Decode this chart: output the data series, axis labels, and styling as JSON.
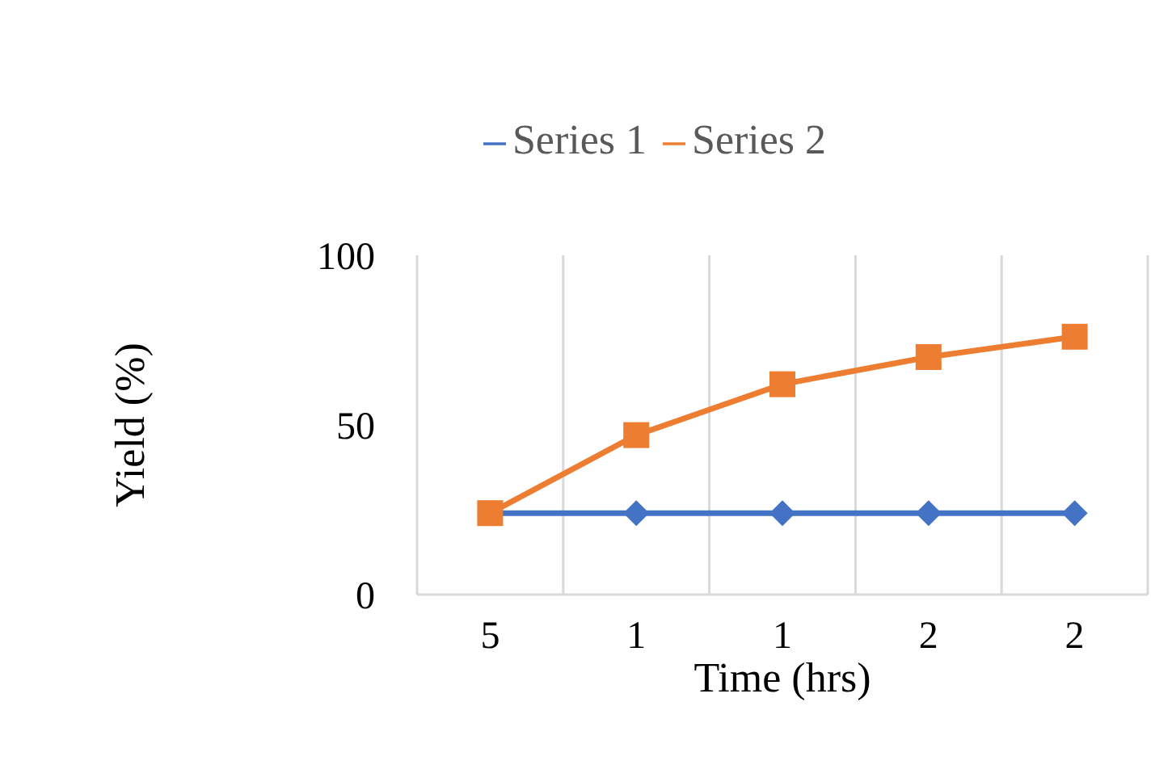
{
  "chart_data": {
    "type": "line",
    "xlabel": "Time (hrs)",
    "ylabel": "Yield (%)",
    "categories": [
      "5",
      "1",
      "1",
      "2",
      "2"
    ],
    "series": [
      {
        "name": "Series 1",
        "color": "#4472c4",
        "marker": "diamond",
        "values": [
          24,
          24,
          24,
          24,
          24
        ]
      },
      {
        "name": "Series 2",
        "color": "#ed7d31",
        "marker": "square",
        "values": [
          24,
          47,
          62,
          70,
          76
        ]
      }
    ],
    "ylim": [
      0,
      100
    ],
    "yticks": [
      0,
      50,
      100
    ],
    "grid": "x",
    "legend": "top"
  }
}
